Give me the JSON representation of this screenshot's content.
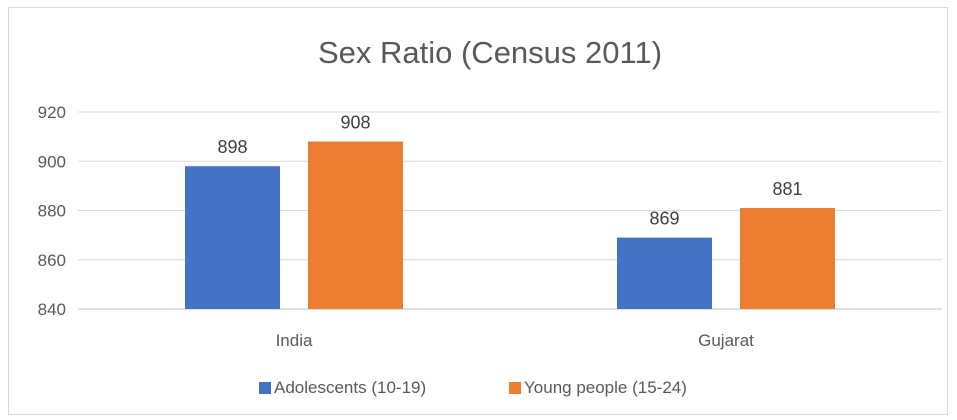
{
  "chart_data": {
    "type": "bar",
    "title": "Sex Ratio (Census 2011)",
    "xlabel": "",
    "ylabel": "",
    "categories": [
      "India",
      "Gujarat"
    ],
    "series": [
      {
        "name": "Adolescents (10-19)",
        "values": [
          898,
          869
        ],
        "color": "#4472C4"
      },
      {
        "name": "Young people (15-24)",
        "values": [
          908,
          881
        ],
        "color": "#ED7D31"
      }
    ],
    "ylim": [
      840,
      920
    ],
    "yticks": [
      840,
      860,
      880,
      900,
      920
    ],
    "grid": true,
    "legend": "bottom",
    "data_labels": true
  }
}
